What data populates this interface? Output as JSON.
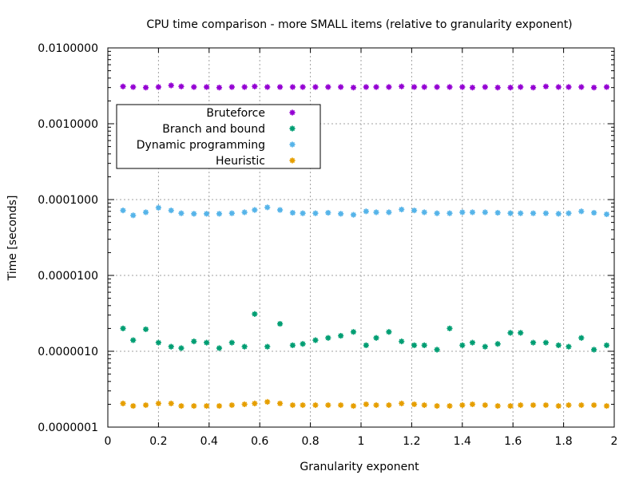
{
  "chart_data": {
    "type": "scatter",
    "title": "CPU time comparison - more SMALL items (relative to granularity exponent)",
    "xlabel": "Granularity exponent",
    "ylabel": "Time [seconds]",
    "xlim": [
      0,
      2
    ],
    "ylim": [
      1e-07,
      0.01
    ],
    "y_scale": "log",
    "grid": true,
    "legend_position": "upper-left",
    "x_ticks": [
      {
        "value": 0,
        "label": "0"
      },
      {
        "value": 0.2,
        "label": "0.2"
      },
      {
        "value": 0.4,
        "label": "0.4"
      },
      {
        "value": 0.6,
        "label": "0.6"
      },
      {
        "value": 0.8,
        "label": "0.8"
      },
      {
        "value": 1,
        "label": "1"
      },
      {
        "value": 1.2,
        "label": "1.2"
      },
      {
        "value": 1.4,
        "label": "1.4"
      },
      {
        "value": 1.6,
        "label": "1.6"
      },
      {
        "value": 1.8,
        "label": "1.8"
      },
      {
        "value": 2,
        "label": "2"
      }
    ],
    "y_ticks": [
      {
        "value": 1e-07,
        "label": "0.0000001"
      },
      {
        "value": 1e-06,
        "label": "0.0000010"
      },
      {
        "value": 1e-05,
        "label": "0.0000100"
      },
      {
        "value": 0.0001,
        "label": "0.0001000"
      },
      {
        "value": 0.001,
        "label": "0.0010000"
      },
      {
        "value": 0.01,
        "label": "0.0100000"
      }
    ],
    "x": [
      0.06,
      0.1,
      0.15,
      0.2,
      0.25,
      0.29,
      0.34,
      0.39,
      0.44,
      0.49,
      0.54,
      0.58,
      0.63,
      0.68,
      0.73,
      0.77,
      0.82,
      0.87,
      0.92,
      0.97,
      1.02,
      1.06,
      1.11,
      1.16,
      1.21,
      1.25,
      1.3,
      1.35,
      1.4,
      1.44,
      1.49,
      1.54,
      1.59,
      1.63,
      1.68,
      1.73,
      1.78,
      1.82,
      1.87,
      1.92,
      1.97
    ],
    "series": [
      {
        "name": "Bruteforce",
        "color": "#9400d3",
        "values": [
          0.0031,
          0.00305,
          0.003,
          0.00305,
          0.0032,
          0.0031,
          0.00305,
          0.00305,
          0.003,
          0.00305,
          0.00305,
          0.0031,
          0.00305,
          0.00305,
          0.00305,
          0.00305,
          0.00305,
          0.00305,
          0.00305,
          0.003,
          0.00305,
          0.00305,
          0.00305,
          0.0031,
          0.00305,
          0.00305,
          0.00305,
          0.00305,
          0.00305,
          0.003,
          0.00305,
          0.003,
          0.003,
          0.00305,
          0.003,
          0.0031,
          0.00305,
          0.00305,
          0.00305,
          0.003,
          0.00305
        ]
      },
      {
        "name": "Branch and bound",
        "color": "#009e73",
        "values": [
          2e-06,
          1.4e-06,
          1.95e-06,
          1.3e-06,
          1.15e-06,
          1.1e-06,
          1.35e-06,
          1.3e-06,
          1.1e-06,
          1.3e-06,
          1.15e-06,
          3.1e-06,
          1.15e-06,
          2.3e-06,
          1.2e-06,
          1.25e-06,
          1.4e-06,
          1.5e-06,
          1.6e-06,
          1.8e-06,
          1.2e-06,
          1.5e-06,
          1.8e-06,
          1.35e-06,
          1.2e-06,
          1.2e-06,
          1.05e-06,
          2e-06,
          1.2e-06,
          1.3e-06,
          1.15e-06,
          1.25e-06,
          1.75e-06,
          1.75e-06,
          1.3e-06,
          1.3e-06,
          1.2e-06,
          1.15e-06,
          1.5e-06,
          1.05e-06,
          1.2e-06
        ]
      },
      {
        "name": "Dynamic programming",
        "color": "#56b4e9",
        "values": [
          7.2e-05,
          6.2e-05,
          6.8e-05,
          7.8e-05,
          7.2e-05,
          6.6e-05,
          6.5e-05,
          6.5e-05,
          6.5e-05,
          6.6e-05,
          6.8e-05,
          7.3e-05,
          7.9e-05,
          7.3e-05,
          6.7e-05,
          6.6e-05,
          6.6e-05,
          6.7e-05,
          6.5e-05,
          6.3e-05,
          7e-05,
          6.8e-05,
          6.8e-05,
          7.4e-05,
          7.2e-05,
          6.8e-05,
          6.6e-05,
          6.6e-05,
          6.8e-05,
          6.8e-05,
          6.8e-05,
          6.7e-05,
          6.6e-05,
          6.6e-05,
          6.6e-05,
          6.6e-05,
          6.5e-05,
          6.6e-05,
          7e-05,
          6.7e-05,
          6.4e-05
        ]
      },
      {
        "name": "Heuristic",
        "color": "#e69f00",
        "values": [
          2.05e-07,
          1.9e-07,
          1.95e-07,
          2.05e-07,
          2.05e-07,
          1.9e-07,
          1.9e-07,
          1.9e-07,
          1.9e-07,
          1.95e-07,
          2e-07,
          2.05e-07,
          2.15e-07,
          2.05e-07,
          1.95e-07,
          1.95e-07,
          1.95e-07,
          1.95e-07,
          1.95e-07,
          1.9e-07,
          2e-07,
          1.95e-07,
          1.95e-07,
          2.05e-07,
          2e-07,
          1.95e-07,
          1.9e-07,
          1.9e-07,
          1.95e-07,
          2e-07,
          1.95e-07,
          1.9e-07,
          1.9e-07,
          1.95e-07,
          1.95e-07,
          1.95e-07,
          1.9e-07,
          1.95e-07,
          1.95e-07,
          1.95e-07,
          1.9e-07
        ]
      }
    ]
  }
}
